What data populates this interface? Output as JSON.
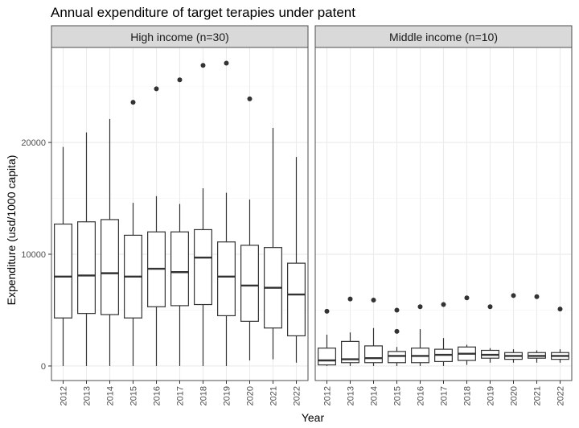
{
  "chart_data": {
    "type": "boxplot",
    "title": "Annual expenditure of target terapies under patent",
    "xlabel": "Year",
    "ylabel": "Expenditure (usd/1000 capita)",
    "ylim": [
      -1300,
      28500
    ],
    "yticks": [
      0,
      10000,
      20000
    ],
    "ytick_labels": [
      "0",
      "10000",
      "20000"
    ],
    "grid": true,
    "categories": [
      "2012",
      "2013",
      "2014",
      "2015",
      "2016",
      "2017",
      "2018",
      "2019",
      "2020",
      "2021",
      "2022"
    ],
    "panels": [
      {
        "label": "High income (n=30)",
        "boxes": [
          {
            "year": "2012",
            "min": 0,
            "q1": 4300,
            "median": 8000,
            "q3": 12700,
            "max": 19600,
            "outliers": []
          },
          {
            "year": "2013",
            "min": 0,
            "q1": 4700,
            "median": 8100,
            "q3": 12900,
            "max": 20900,
            "outliers": []
          },
          {
            "year": "2014",
            "min": 0,
            "q1": 4600,
            "median": 8300,
            "q3": 13100,
            "max": 22100,
            "outliers": []
          },
          {
            "year": "2015",
            "min": 0,
            "q1": 4300,
            "median": 8000,
            "q3": 11700,
            "max": 14600,
            "outliers": [
              23600
            ]
          },
          {
            "year": "2016",
            "min": 0,
            "q1": 5300,
            "median": 8700,
            "q3": 12000,
            "max": 15200,
            "outliers": [
              24800
            ]
          },
          {
            "year": "2017",
            "min": 0,
            "q1": 5400,
            "median": 8400,
            "q3": 12000,
            "max": 14500,
            "outliers": [
              25600
            ]
          },
          {
            "year": "2018",
            "min": 0,
            "q1": 5500,
            "median": 9700,
            "q3": 12200,
            "max": 15900,
            "outliers": [
              26900
            ]
          },
          {
            "year": "2019",
            "min": 0,
            "q1": 4500,
            "median": 8000,
            "q3": 11100,
            "max": 15500,
            "outliers": [
              27100
            ]
          },
          {
            "year": "2020",
            "min": 500,
            "q1": 4000,
            "median": 7200,
            "q3": 10800,
            "max": 14900,
            "outliers": [
              23900
            ]
          },
          {
            "year": "2021",
            "min": 600,
            "q1": 3400,
            "median": 7000,
            "q3": 10600,
            "max": 21300,
            "outliers": []
          },
          {
            "year": "2022",
            "min": 300,
            "q1": 2700,
            "median": 6400,
            "q3": 9200,
            "max": 18700,
            "outliers": []
          }
        ]
      },
      {
        "label": "Middle income (n=10)",
        "boxes": [
          {
            "year": "2012",
            "min": 0,
            "q1": 100,
            "median": 500,
            "q3": 1600,
            "max": 2800,
            "outliers": [
              4900
            ]
          },
          {
            "year": "2013",
            "min": 0,
            "q1": 300,
            "median": 600,
            "q3": 2200,
            "max": 3000,
            "outliers": [
              6000
            ]
          },
          {
            "year": "2014",
            "min": 0,
            "q1": 300,
            "median": 700,
            "q3": 1800,
            "max": 3400,
            "outliers": [
              5900
            ]
          },
          {
            "year": "2015",
            "min": 0,
            "q1": 300,
            "median": 900,
            "q3": 1300,
            "max": 1700,
            "outliers": [
              3100,
              5000
            ]
          },
          {
            "year": "2016",
            "min": 0,
            "q1": 300,
            "median": 900,
            "q3": 1600,
            "max": 3300,
            "outliers": [
              5300
            ]
          },
          {
            "year": "2017",
            "min": 0,
            "q1": 400,
            "median": 1000,
            "q3": 1500,
            "max": 2500,
            "outliers": [
              5500
            ]
          },
          {
            "year": "2018",
            "min": 100,
            "q1": 500,
            "median": 1100,
            "q3": 1700,
            "max": 1900,
            "outliers": [
              6100
            ]
          },
          {
            "year": "2019",
            "min": 300,
            "q1": 700,
            "median": 1000,
            "q3": 1400,
            "max": 1600,
            "outliers": [
              5300
            ]
          },
          {
            "year": "2020",
            "min": 300,
            "q1": 600,
            "median": 900,
            "q3": 1200,
            "max": 1500,
            "outliers": [
              6300
            ]
          },
          {
            "year": "2021",
            "min": 300,
            "q1": 700,
            "median": 900,
            "q3": 1200,
            "max": 1400,
            "outliers": [
              6200
            ]
          },
          {
            "year": "2022",
            "min": 300,
            "q1": 600,
            "median": 900,
            "q3": 1200,
            "max": 1500,
            "outliers": [
              5100
            ]
          }
        ]
      }
    ]
  },
  "colors": {
    "panel_background": "#ffffff",
    "panel_border": "#4d4d4d",
    "strip_background": "#d9d9d9",
    "grid_major": "#ebebeb",
    "grid_minor": "#f5f5f5",
    "box_line": "#333333",
    "point": "#333333"
  }
}
